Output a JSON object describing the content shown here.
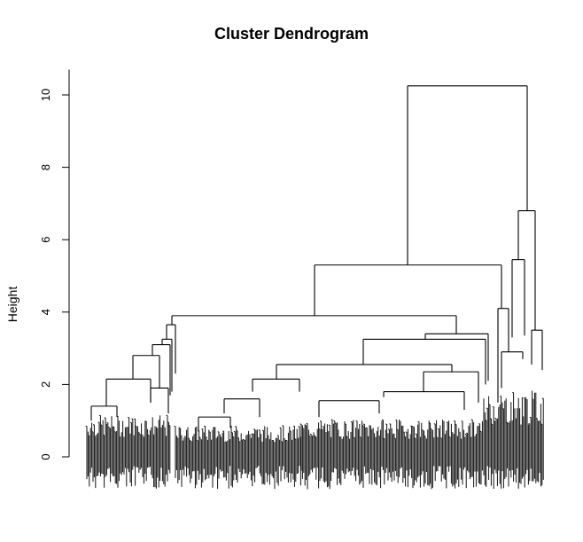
{
  "chart_data": {
    "type": "dendrogram",
    "title": "Cluster Dendrogram",
    "xlabel": "",
    "ylabel": "Height",
    "ylim": [
      0,
      10.5
    ],
    "yticks": [
      0,
      2,
      4,
      6,
      8,
      10
    ],
    "grid": false,
    "legend": null,
    "top_merges": [
      {
        "height": 10.25,
        "description": "root merge: main left cluster vs right small cluster"
      },
      {
        "height": 6.8,
        "description": "right cluster split"
      },
      {
        "height": 5.45,
        "description": "right sub-cluster"
      },
      {
        "height": 5.3,
        "description": "left main cluster split"
      },
      {
        "height": 3.9,
        "description": "left-most group vs middle group"
      },
      {
        "height": 3.65,
        "description": "left-most group chain"
      },
      {
        "height": 3.4,
        "description": "middle group split"
      },
      {
        "height": 3.25,
        "description": "middle group sub-branch"
      },
      {
        "height": 2.8,
        "description": "left-most group merge"
      },
      {
        "height": 2.55,
        "description": "middle group merge"
      },
      {
        "height": 2.15,
        "description": "left-most subgroup merge"
      },
      {
        "height": 2.15,
        "description": "middle subgroup merge"
      }
    ],
    "leaf_baseline_range": [
      -0.9,
      0.9
    ]
  },
  "axis": {
    "tick_labels": [
      "0",
      "2",
      "4",
      "6",
      "8",
      "10"
    ]
  }
}
